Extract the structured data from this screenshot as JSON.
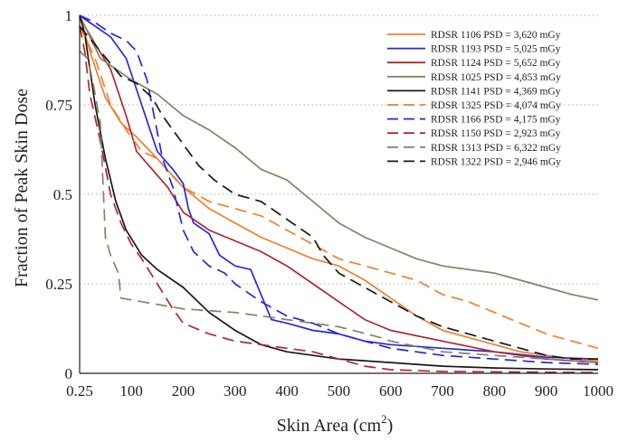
{
  "chart_data": {
    "type": "line",
    "xlabel": "Skin Area (cm",
    "xlabel_sup": "2",
    "xlabel_close": ")",
    "ylabel": "Fraction of Peak Skin Dose",
    "xlim": [
      0.25,
      1000
    ],
    "ylim": [
      0,
      1
    ],
    "x_ticks": [
      0.25,
      100,
      200,
      300,
      400,
      500,
      600,
      700,
      800,
      900,
      1000
    ],
    "x_tick_labels": [
      "0.25",
      "100",
      "200",
      "300",
      "400",
      "500",
      "600",
      "700",
      "800",
      "900",
      "1000"
    ],
    "y_ticks": [
      0,
      0.25,
      0.5,
      0.75,
      1
    ],
    "y_tick_labels": [
      "0",
      "0.25",
      "0.5",
      "0.75",
      "1"
    ],
    "grid": "horizontal dotted",
    "legend_position": "top-right",
    "series": [
      {
        "name": "RDSR 1106 PSD = 3,620 mGy",
        "color": "#f07f2d",
        "dash": "solid",
        "points": [
          [
            0.25,
            1
          ],
          [
            20,
            0.9
          ],
          [
            50,
            0.77
          ],
          [
            80,
            0.7
          ],
          [
            110,
            0.66
          ],
          [
            150,
            0.6
          ],
          [
            200,
            0.52
          ],
          [
            250,
            0.46
          ],
          [
            300,
            0.42
          ],
          [
            350,
            0.38
          ],
          [
            400,
            0.35
          ],
          [
            450,
            0.32
          ],
          [
            500,
            0.3
          ],
          [
            550,
            0.26
          ],
          [
            600,
            0.21
          ],
          [
            650,
            0.16
          ],
          [
            700,
            0.12
          ],
          [
            750,
            0.1
          ],
          [
            800,
            0.08
          ],
          [
            850,
            0.06
          ],
          [
            900,
            0.05
          ],
          [
            950,
            0.04
          ],
          [
            1000,
            0.035
          ]
        ]
      },
      {
        "name": "RDSR 1193 PSD = 5,025 mGy",
        "color": "#2828d8",
        "dash": "solid",
        "points": [
          [
            0.25,
            1
          ],
          [
            10,
            0.99
          ],
          [
            30,
            0.97
          ],
          [
            60,
            0.94
          ],
          [
            90,
            0.88
          ],
          [
            120,
            0.75
          ],
          [
            150,
            0.62
          ],
          [
            180,
            0.57
          ],
          [
            200,
            0.53
          ],
          [
            210,
            0.46
          ],
          [
            220,
            0.42
          ],
          [
            250,
            0.39
          ],
          [
            270,
            0.33
          ],
          [
            300,
            0.3
          ],
          [
            330,
            0.29
          ],
          [
            350,
            0.22
          ],
          [
            370,
            0.15
          ],
          [
            400,
            0.14
          ],
          [
            450,
            0.12
          ],
          [
            500,
            0.11
          ],
          [
            550,
            0.09
          ],
          [
            600,
            0.08
          ],
          [
            700,
            0.07
          ],
          [
            800,
            0.06
          ],
          [
            900,
            0.045
          ],
          [
            1000,
            0.04
          ]
        ]
      },
      {
        "name": "RDSR 1124 PSD = 5,652 mGy",
        "color": "#b0272e",
        "dash": "solid",
        "points": [
          [
            0.25,
            1
          ],
          [
            10,
            0.97
          ],
          [
            30,
            0.92
          ],
          [
            60,
            0.85
          ],
          [
            90,
            0.72
          ],
          [
            110,
            0.62
          ],
          [
            140,
            0.57
          ],
          [
            170,
            0.52
          ],
          [
            200,
            0.45
          ],
          [
            250,
            0.4
          ],
          [
            300,
            0.37
          ],
          [
            350,
            0.34
          ],
          [
            400,
            0.3
          ],
          [
            450,
            0.25
          ],
          [
            500,
            0.2
          ],
          [
            550,
            0.15
          ],
          [
            600,
            0.12
          ],
          [
            700,
            0.09
          ],
          [
            800,
            0.06
          ],
          [
            900,
            0.04
          ],
          [
            1000,
            0.03
          ]
        ]
      },
      {
        "name": "RDSR 1025 PSD = 4,853 mGy",
        "color": "#7f8569",
        "dash": "solid",
        "points": [
          [
            0.25,
            1
          ],
          [
            40,
            0.88
          ],
          [
            100,
            0.82
          ],
          [
            150,
            0.78
          ],
          [
            200,
            0.72
          ],
          [
            250,
            0.68
          ],
          [
            300,
            0.63
          ],
          [
            350,
            0.57
          ],
          [
            400,
            0.54
          ],
          [
            450,
            0.48
          ],
          [
            500,
            0.42
          ],
          [
            550,
            0.38
          ],
          [
            600,
            0.35
          ],
          [
            650,
            0.32
          ],
          [
            700,
            0.3
          ],
          [
            750,
            0.29
          ],
          [
            800,
            0.28
          ],
          [
            850,
            0.26
          ],
          [
            900,
            0.24
          ],
          [
            950,
            0.22
          ],
          [
            1000,
            0.205
          ]
        ]
      },
      {
        "name": "RDSR 1141 PSD = 4,369 mGy",
        "color": "#181818",
        "dash": "solid",
        "points": [
          [
            0.25,
            1
          ],
          [
            10,
            0.95
          ],
          [
            20,
            0.85
          ],
          [
            30,
            0.75
          ],
          [
            50,
            0.6
          ],
          [
            70,
            0.48
          ],
          [
            90,
            0.4
          ],
          [
            120,
            0.33
          ],
          [
            150,
            0.29
          ],
          [
            200,
            0.24
          ],
          [
            250,
            0.17
          ],
          [
            300,
            0.12
          ],
          [
            350,
            0.08
          ],
          [
            400,
            0.06
          ],
          [
            450,
            0.05
          ],
          [
            500,
            0.04
          ],
          [
            600,
            0.03
          ],
          [
            700,
            0.02
          ],
          [
            800,
            0.015
          ],
          [
            900,
            0.012
          ],
          [
            1000,
            0.01
          ]
        ]
      },
      {
        "name": "RDSR 1325 PSD = 4,074 mGy",
        "color": "#f07f2d",
        "dash": "dashed",
        "points": [
          [
            0.25,
            0.97
          ],
          [
            30,
            0.88
          ],
          [
            60,
            0.75
          ],
          [
            90,
            0.68
          ],
          [
            120,
            0.62
          ],
          [
            150,
            0.6
          ],
          [
            180,
            0.55
          ],
          [
            200,
            0.52
          ],
          [
            250,
            0.48
          ],
          [
            300,
            0.46
          ],
          [
            350,
            0.44
          ],
          [
            400,
            0.4
          ],
          [
            450,
            0.36
          ],
          [
            500,
            0.32
          ],
          [
            550,
            0.3
          ],
          [
            600,
            0.28
          ],
          [
            650,
            0.26
          ],
          [
            700,
            0.22
          ],
          [
            750,
            0.2
          ],
          [
            800,
            0.17
          ],
          [
            850,
            0.14
          ],
          [
            900,
            0.11
          ],
          [
            950,
            0.09
          ],
          [
            1000,
            0.07
          ]
        ]
      },
      {
        "name": "RDSR 1166 PSD = 4,175 mGy",
        "color": "#2828d8",
        "dash": "dashed",
        "points": [
          [
            0.25,
            1
          ],
          [
            30,
            0.98
          ],
          [
            60,
            0.95
          ],
          [
            90,
            0.93
          ],
          [
            110,
            0.9
          ],
          [
            130,
            0.82
          ],
          [
            160,
            0.6
          ],
          [
            180,
            0.52
          ],
          [
            200,
            0.4
          ],
          [
            220,
            0.34
          ],
          [
            250,
            0.3
          ],
          [
            280,
            0.28
          ],
          [
            300,
            0.25
          ],
          [
            330,
            0.22
          ],
          [
            350,
            0.2
          ],
          [
            400,
            0.16
          ],
          [
            450,
            0.14
          ],
          [
            500,
            0.11
          ],
          [
            550,
            0.09
          ],
          [
            600,
            0.07
          ],
          [
            700,
            0.05
          ],
          [
            800,
            0.04
          ],
          [
            900,
            0.03
          ],
          [
            1000,
            0.025
          ]
        ]
      },
      {
        "name": "RDSR 1150 PSD = 2,923 mGy",
        "color": "#b0272e",
        "dash": "dashed",
        "points": [
          [
            0.25,
            0.97
          ],
          [
            10,
            0.9
          ],
          [
            20,
            0.78
          ],
          [
            40,
            0.65
          ],
          [
            60,
            0.5
          ],
          [
            80,
            0.42
          ],
          [
            100,
            0.36
          ],
          [
            120,
            0.32
          ],
          [
            150,
            0.25
          ],
          [
            180,
            0.18
          ],
          [
            200,
            0.14
          ],
          [
            250,
            0.11
          ],
          [
            300,
            0.09
          ],
          [
            350,
            0.08
          ],
          [
            400,
            0.07
          ],
          [
            450,
            0.06
          ],
          [
            500,
            0.04
          ],
          [
            550,
            0.02
          ],
          [
            600,
            0.01
          ],
          [
            700,
            0.005
          ],
          [
            1000,
            0.002
          ]
        ]
      },
      {
        "name": "RDSR 1313 PSD = 6,322 mGy",
        "color": "#7f8569",
        "dash": "dashed",
        "points": [
          [
            0.25,
            0.9
          ],
          [
            15,
            0.88
          ],
          [
            25,
            0.82
          ],
          [
            40,
            0.7
          ],
          [
            50,
            0.38
          ],
          [
            60,
            0.33
          ],
          [
            75,
            0.28
          ],
          [
            80,
            0.21
          ],
          [
            120,
            0.2
          ],
          [
            200,
            0.18
          ],
          [
            300,
            0.17
          ],
          [
            350,
            0.16
          ],
          [
            400,
            0.15
          ],
          [
            500,
            0.13
          ],
          [
            580,
            0.1
          ],
          [
            600,
            0.09
          ],
          [
            700,
            0.06
          ],
          [
            800,
            0.05
          ],
          [
            900,
            0.04
          ],
          [
            1000,
            0.03
          ]
        ]
      },
      {
        "name": "RDSR 1322 PSD = 2,946 mGy",
        "color": "#181818",
        "dash": "dashed",
        "points": [
          [
            0.25,
            0.97
          ],
          [
            40,
            0.9
          ],
          [
            80,
            0.83
          ],
          [
            110,
            0.81
          ],
          [
            140,
            0.77
          ],
          [
            160,
            0.72
          ],
          [
            180,
            0.68
          ],
          [
            200,
            0.64
          ],
          [
            230,
            0.58
          ],
          [
            260,
            0.54
          ],
          [
            300,
            0.5
          ],
          [
            350,
            0.48
          ],
          [
            400,
            0.43
          ],
          [
            450,
            0.38
          ],
          [
            470,
            0.33
          ],
          [
            500,
            0.28
          ],
          [
            550,
            0.24
          ],
          [
            600,
            0.2
          ],
          [
            650,
            0.16
          ],
          [
            700,
            0.13
          ],
          [
            750,
            0.11
          ],
          [
            800,
            0.09
          ],
          [
            850,
            0.07
          ],
          [
            900,
            0.05
          ],
          [
            950,
            0.04
          ],
          [
            1000,
            0.04
          ]
        ]
      }
    ]
  }
}
